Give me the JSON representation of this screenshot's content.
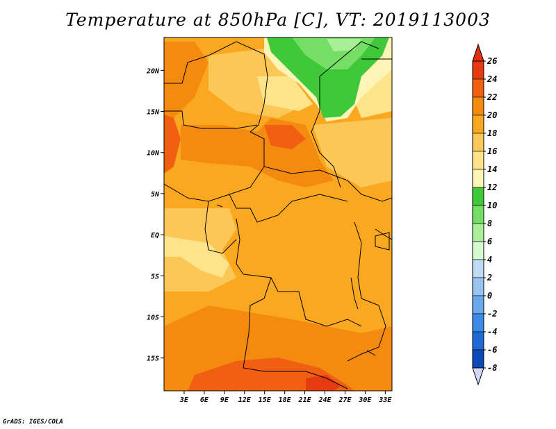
{
  "title": "Temperature at 850hPa [C], VT: 2019113003",
  "footer": "GrADS: IGES/COLA",
  "map": {
    "lat_range": [
      -19,
      24
    ],
    "lon_range": [
      0,
      34
    ],
    "lat_ticks": [
      {
        "value": 20,
        "label": "20N"
      },
      {
        "value": 15,
        "label": "15N"
      },
      {
        "value": 10,
        "label": "10N"
      },
      {
        "value": 5,
        "label": "5N"
      },
      {
        "value": 0,
        "label": "EQ"
      },
      {
        "value": -5,
        "label": "5S"
      },
      {
        "value": -10,
        "label": "10S"
      },
      {
        "value": -15,
        "label": "15S"
      }
    ],
    "lon_ticks": [
      {
        "value": 3,
        "label": "3E"
      },
      {
        "value": 6,
        "label": "6E"
      },
      {
        "value": 9,
        "label": "9E"
      },
      {
        "value": 12,
        "label": "12E"
      },
      {
        "value": 15,
        "label": "15E"
      },
      {
        "value": 18,
        "label": "18E"
      },
      {
        "value": 21,
        "label": "21E"
      },
      {
        "value": 24,
        "label": "24E"
      },
      {
        "value": 27,
        "label": "27E"
      },
      {
        "value": 30,
        "label": "30E"
      },
      {
        "value": 33,
        "label": "33E"
      }
    ]
  },
  "colorbar": {
    "levels": [
      "26",
      "24",
      "22",
      "20",
      "18",
      "16",
      "14",
      "12",
      "10",
      "8",
      "6",
      "4",
      "2",
      "0",
      "-2",
      "-4",
      "-6",
      "-8"
    ],
    "colors": [
      "#e83a10",
      "#f06010",
      "#f58a10",
      "#f9a820",
      "#fbc858",
      "#fde38a",
      "#fdf5b5",
      "#3ec83a",
      "#74df64",
      "#a8ef98",
      "#d6f9d0",
      "#c0dcf4",
      "#98c4f2",
      "#6aa8ee",
      "#3c8aea",
      "#1e68d8",
      "#0c48b8",
      "#0a2a90",
      "#06106a"
    ],
    "top_arrow_color": "#e03010",
    "bottom_arrow_color": "#d4d8f8"
  }
}
